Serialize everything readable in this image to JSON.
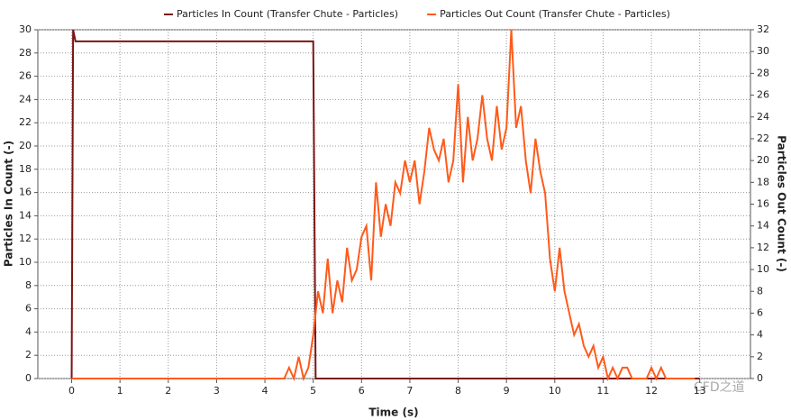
{
  "chart_data": {
    "type": "line",
    "legend": "top",
    "grid": true,
    "xlabel": "Time (s)",
    "ylabel": "Particles In Count (-)",
    "y2label": "Particles Out Count (-)",
    "annotation": "CFD之道",
    "xlim": [
      -0.7,
      14.05
    ],
    "xticks": [
      0,
      1,
      2,
      3,
      4,
      5,
      6,
      7,
      8,
      9,
      10,
      11,
      12,
      13
    ],
    "ylim": [
      0,
      30
    ],
    "yticks": [
      0,
      2,
      4,
      6,
      8,
      10,
      12,
      14,
      16,
      18,
      20,
      22,
      24,
      26,
      28,
      30
    ],
    "y2lim": [
      0,
      32
    ],
    "y2ticks": [
      0,
      2,
      4,
      6,
      8,
      10,
      12,
      14,
      16,
      18,
      20,
      22,
      24,
      26,
      28,
      30,
      32
    ],
    "series": [
      {
        "name": "Particles In Count (Transfer Chute - Particles)",
        "color": "#7b1414",
        "x": [
          0,
          0.03,
          0.08,
          5.0,
          5.05,
          13
        ],
        "values": [
          0,
          30,
          29,
          29,
          0,
          0
        ]
      },
      {
        "name": "Particles Out Count (Transfer Chute - Particles)",
        "color": "#ff5a1a",
        "axis": "y2",
        "x": [
          0,
          4.4,
          4.5,
          4.6,
          4.7,
          4.8,
          4.9,
          5.0,
          5.1,
          5.2,
          5.3,
          5.4,
          5.5,
          5.6,
          5.7,
          5.8,
          5.9,
          6.0,
          6.1,
          6.2,
          6.3,
          6.4,
          6.5,
          6.6,
          6.7,
          6.8,
          6.9,
          7.0,
          7.1,
          7.2,
          7.3,
          7.4,
          7.5,
          7.6,
          7.7,
          7.8,
          7.9,
          8.0,
          8.1,
          8.2,
          8.3,
          8.4,
          8.5,
          8.6,
          8.7,
          8.8,
          8.9,
          9.0,
          9.1,
          9.2,
          9.3,
          9.4,
          9.5,
          9.6,
          9.7,
          9.8,
          9.9,
          10.0,
          10.1,
          10.2,
          10.3,
          10.4,
          10.5,
          10.6,
          10.7,
          10.8,
          10.9,
          11.0,
          11.1,
          11.2,
          11.3,
          11.4,
          11.5,
          11.6,
          11.7,
          11.8,
          11.9,
          12.0,
          12.1,
          12.2,
          12.3,
          12.9
        ],
        "values": [
          0,
          0,
          1,
          0,
          2,
          0,
          1,
          4,
          8,
          6,
          11,
          6,
          9,
          7,
          12,
          9,
          10,
          13,
          14,
          9,
          18,
          13,
          16,
          14,
          18,
          17,
          20,
          18,
          20,
          16,
          19,
          23,
          21,
          20,
          22,
          18,
          20,
          27,
          18,
          24,
          20,
          22,
          26,
          22,
          20,
          25,
          21,
          23,
          32,
          23,
          25,
          20,
          17,
          22,
          19,
          17,
          11,
          8,
          12,
          8,
          6,
          4,
          5,
          3,
          2,
          3,
          1,
          2,
          0,
          1,
          0,
          1,
          1,
          0,
          0,
          0,
          0,
          1,
          0,
          1,
          0,
          0
        ]
      }
    ]
  }
}
